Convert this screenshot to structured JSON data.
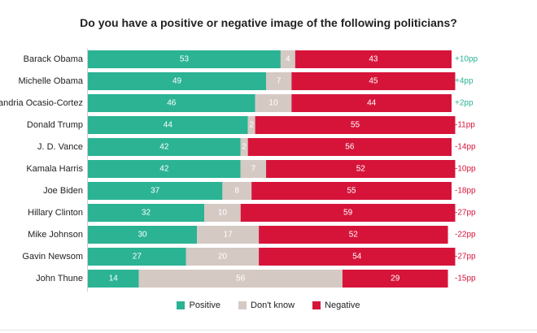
{
  "chart_data": {
    "type": "bar",
    "orientation": "horizontal",
    "stacked": true,
    "title": "Do you have a positive or negative image of the following politicians?",
    "categories": [
      "Barack Obama",
      "Michelle Obama",
      "Alexandria Ocasio-Cortez",
      "Donald Trump",
      "J. D. Vance",
      "Kamala Harris",
      "Joe Biden",
      "Hillary Clinton",
      "Mike Johnson",
      "Gavin Newsom",
      "John Thune"
    ],
    "series": [
      {
        "name": "Positive",
        "color": "#2bb394",
        "values": [
          53,
          49,
          46,
          44,
          42,
          42,
          37,
          32,
          30,
          27,
          14
        ]
      },
      {
        "name": "Don't know",
        "color": "#d5c9c4",
        "values": [
          4,
          7,
          10,
          2,
          2,
          7,
          8,
          10,
          17,
          20,
          56
        ]
      },
      {
        "name": "Negative",
        "color": "#d6143a",
        "values": [
          43,
          45,
          44,
          55,
          56,
          52,
          55,
          59,
          52,
          54,
          29
        ]
      }
    ],
    "net_labels": [
      "+10pp",
      "+4pp",
      "+2pp",
      "-11pp",
      "-14pp",
      "-10pp",
      "-18pp",
      "-27pp",
      "-22pp",
      "-27pp",
      "-15pp"
    ],
    "net_colors": {
      "positive": "#2bb394",
      "negative": "#d6143a"
    },
    "xlim": [
      0,
      100
    ],
    "legend_position": "bottom-center"
  }
}
